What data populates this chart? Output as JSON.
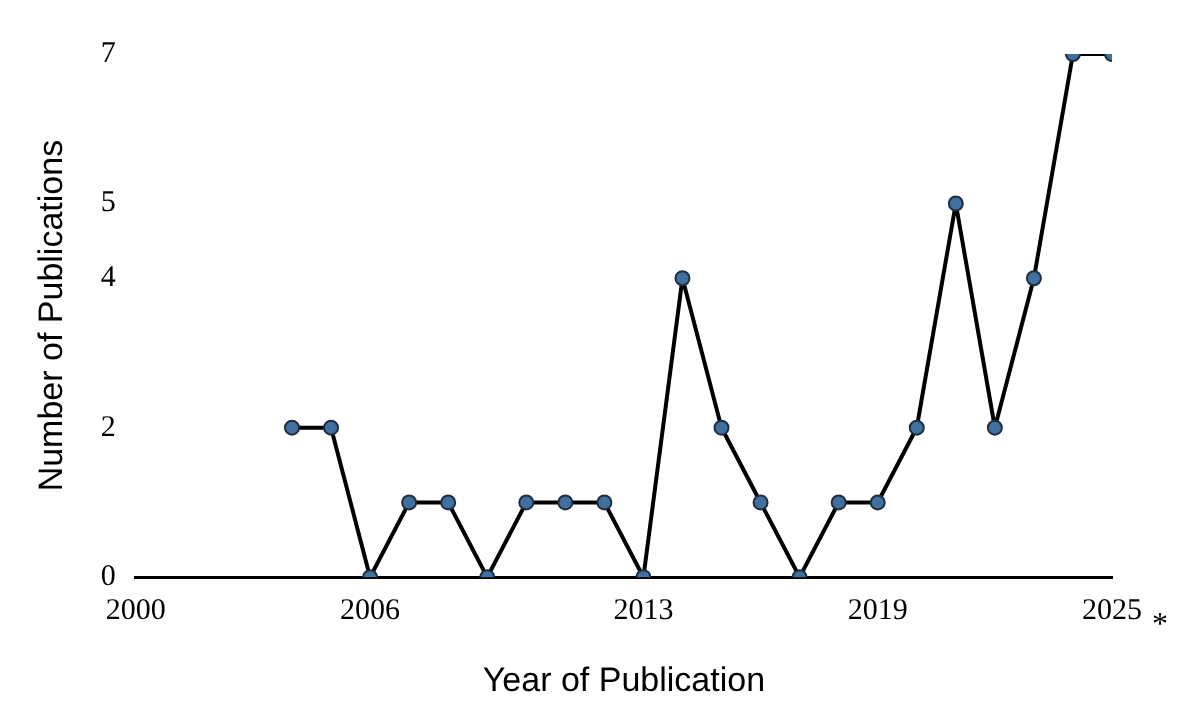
{
  "chart_data": {
    "type": "line",
    "xlabel": "Year of Publication",
    "ylabel": "Number of Publications",
    "x": [
      2004,
      2005,
      2006,
      2007,
      2008,
      2009,
      2010,
      2011,
      2012,
      2013,
      2014,
      2015,
      2016,
      2017,
      2018,
      2019,
      2020,
      2021,
      2022,
      2023,
      2024,
      2025
    ],
    "series": [
      {
        "color": "#000000",
        "values": [
          2,
          2,
          0,
          1,
          1,
          0,
          1,
          1,
          1,
          0,
          4,
          2,
          1,
          0,
          1,
          1,
          2,
          5,
          2,
          4,
          7,
          7
        ]
      }
    ],
    "xlim": [
      2000,
      2025
    ],
    "xticks": [
      2000,
      2006,
      2013,
      2019,
      2025
    ],
    "ylim": [
      0,
      7
    ],
    "yticks": [
      0,
      2,
      4,
      5,
      7
    ],
    "grid": false,
    "legend": false,
    "marker": "circle",
    "line_style": "solid",
    "annotations": [
      "*"
    ]
  }
}
